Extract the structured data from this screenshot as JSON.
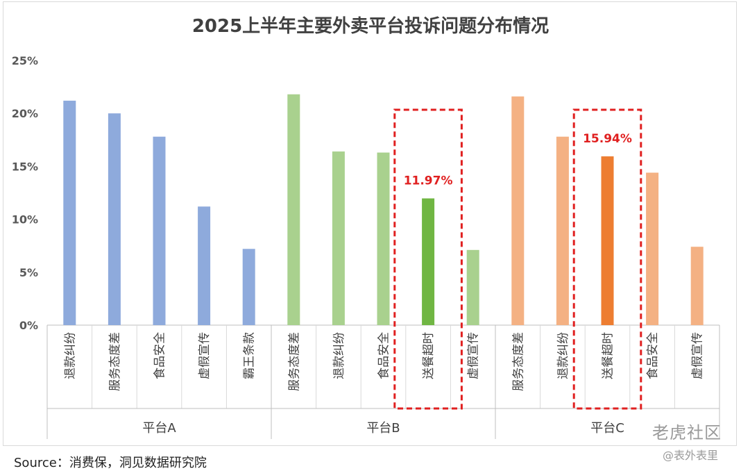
{
  "chart_data": {
    "type": "bar",
    "title": "2025上半年主要外卖平台投诉问题分布情况",
    "ylim": [
      0,
      25
    ],
    "yticks": [
      "0%",
      "5%",
      "10%",
      "15%",
      "20%",
      "25%"
    ],
    "groups": [
      {
        "name": "平台A",
        "color": "#8eaadc",
        "categories": [
          "退款纠纷",
          "服务态度差",
          "食品安全",
          "虚假宣传",
          "霸王条款"
        ],
        "values": [
          21.2,
          20.0,
          17.8,
          11.2,
          7.2
        ]
      },
      {
        "name": "平台B",
        "color": "#a9d18e",
        "highlight_color": "#70b643",
        "categories": [
          "服务态度差",
          "退款纠纷",
          "食品安全",
          "送餐超时",
          "虚假宣传"
        ],
        "values": [
          21.8,
          16.4,
          16.3,
          11.97,
          7.1
        ],
        "highlight_index": 3,
        "highlight_label": "11.97%"
      },
      {
        "name": "平台C",
        "color": "#f4b183",
        "highlight_color": "#ed7d31",
        "categories": [
          "服务态度差",
          "退款纠纷",
          "送餐超时",
          "食品安全",
          "虚假宣传"
        ],
        "values": [
          21.6,
          17.8,
          15.94,
          14.4,
          7.4
        ],
        "highlight_index": 2,
        "highlight_label": "15.94%"
      }
    ],
    "highlight_box_color": "#e02020",
    "highlight_label_color": "#e02020",
    "grid": false,
    "legend": "none"
  },
  "source": "Source：消费保，洞见数据研究院",
  "watermarks": {
    "brand": "老虎社区",
    "handle": "@表外表里"
  }
}
